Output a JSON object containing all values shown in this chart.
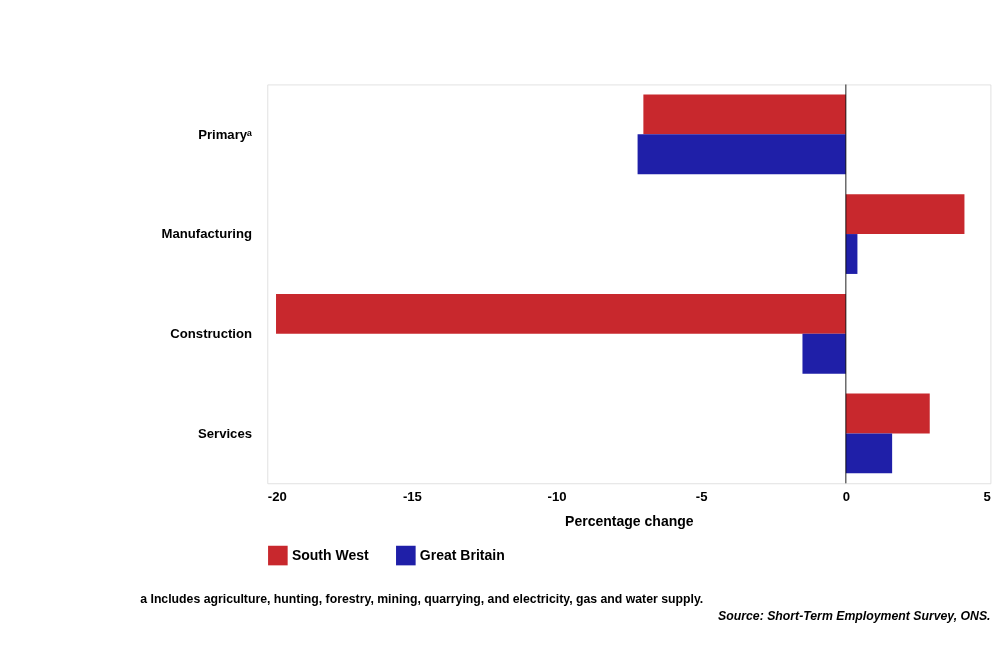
{
  "chart_data": {
    "type": "bar",
    "orientation": "horizontal",
    "xlabel": "Percentage change",
    "categories": [
      "Primaryᵃ",
      "Manufacturing",
      "Construction",
      "Services"
    ],
    "series": [
      {
        "name": "South West",
        "color": "#c8282d",
        "values": [
          -7.0,
          4.1,
          -19.7,
          2.9
        ]
      },
      {
        "name": "Great Britain",
        "color": "#1f1fa8",
        "values": [
          -7.2,
          0.4,
          -1.5,
          1.6
        ]
      }
    ],
    "xlim": [
      -20,
      5
    ],
    "xticks": [
      -20,
      -15,
      -10,
      -5,
      0,
      5
    ],
    "ref_lines": [
      {
        "axis": "x",
        "value": 0,
        "color": "#000000"
      }
    ],
    "grid": false,
    "legend": "bottom left",
    "annotations": [
      "a  Includes agriculture, hunting, forestry, mining, quarrying, and electricity, gas and water supply.",
      "Source: Short-Term Employment Survey, ONS."
    ]
  }
}
